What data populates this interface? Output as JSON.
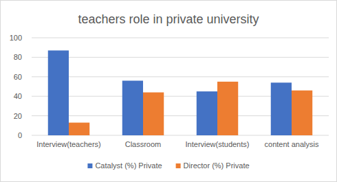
{
  "chart_data": {
    "type": "bar",
    "title": "teachers role in private university",
    "categories": [
      "Interview(teachers)",
      "Classroom",
      "Interview(students)",
      "content analysis"
    ],
    "series": [
      {
        "name": "Catalyst (%) Private",
        "color": "#4472c4",
        "values": [
          87,
          56,
          45,
          54
        ]
      },
      {
        "name": "Director (%) Private",
        "color": "#ed7d31",
        "values": [
          13,
          44,
          55,
          46
        ]
      }
    ],
    "ylim": [
      0,
      100
    ],
    "yticks": [
      0,
      20,
      40,
      60,
      80,
      100
    ],
    "grid": true,
    "legend": "bottom"
  }
}
